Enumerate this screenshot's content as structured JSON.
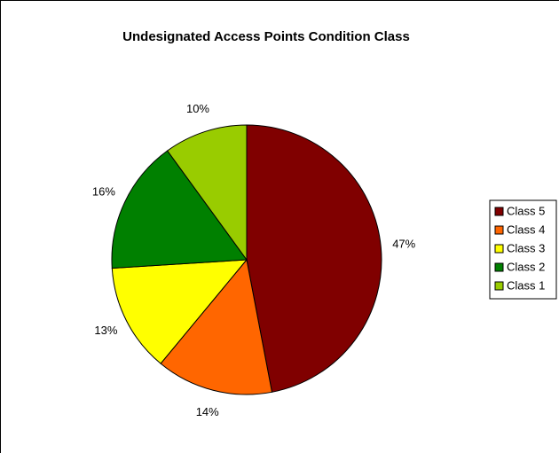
{
  "chart_data": {
    "type": "pie",
    "title": "Undesignated Access Points Condition Class",
    "categories": [
      "Class 5",
      "Class 4",
      "Class 3",
      "Class 2",
      "Class 1"
    ],
    "values": [
      47,
      14,
      13,
      16,
      10
    ],
    "value_labels": [
      "47%",
      "14%",
      "13%",
      "16%",
      "10%"
    ],
    "colors": [
      "#800000",
      "#ff6600",
      "#ffff00",
      "#008000",
      "#99cc00"
    ],
    "legend": "right"
  }
}
